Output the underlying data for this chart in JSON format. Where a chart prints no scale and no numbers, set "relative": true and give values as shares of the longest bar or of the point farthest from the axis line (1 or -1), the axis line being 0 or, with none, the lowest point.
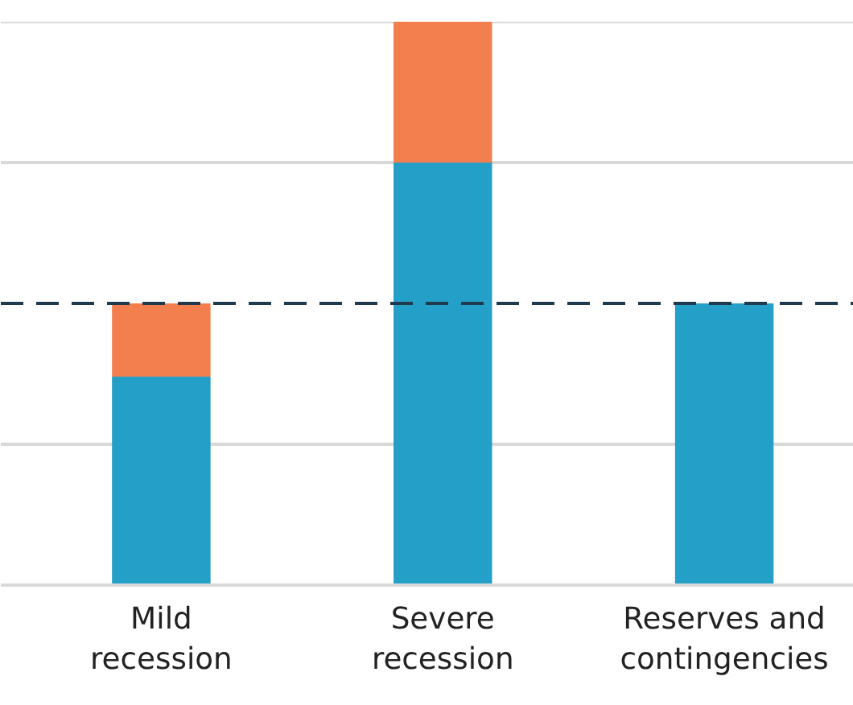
{
  "chart_data": {
    "type": "bar",
    "stacked": true,
    "relative": true,
    "categories": [
      "Mild recession",
      "Severe recession",
      "Reserves and contingencies"
    ],
    "series": [
      {
        "color": "#239fc8",
        "values": [
          0.37,
          0.75,
          0.5
        ]
      },
      {
        "color": "#f47f4e",
        "values": [
          0.13,
          0.25,
          null
        ]
      }
    ],
    "ref_lines": [
      {
        "axis": "y",
        "value": 0.25,
        "color": "#d9d9d9",
        "line_style": "solid"
      },
      {
        "axis": "y",
        "value": 0.75,
        "color": "#d9d9d9",
        "line_style": "solid"
      },
      {
        "axis": "y",
        "value": 1,
        "color": "#d9d9d9",
        "line_style": "solid"
      },
      {
        "axis": "y",
        "value": 0.5,
        "color": "#1f3a4d",
        "line_style": "dashed"
      }
    ]
  }
}
